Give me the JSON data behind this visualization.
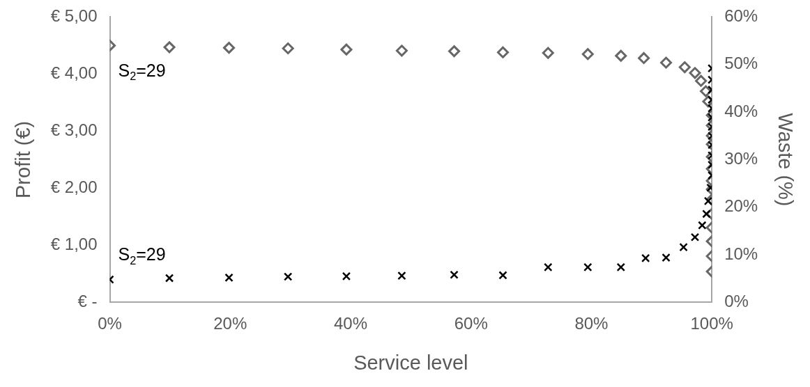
{
  "chart_data": {
    "type": "scatter",
    "xlabel": "Service level",
    "ylabel": "Profit (€)",
    "y2label": "Waste (%)",
    "xlim": [
      0,
      100
    ],
    "xticks": [
      {
        "value": 0,
        "label": "0%"
      },
      {
        "value": 20,
        "label": "20%"
      },
      {
        "value": 40,
        "label": "40%"
      },
      {
        "value": 60,
        "label": "60%"
      },
      {
        "value": 80,
        "label": "80%"
      },
      {
        "value": 100,
        "label": "100%"
      }
    ],
    "ylim": [
      0,
      5
    ],
    "yticks": [
      {
        "value": 0,
        "label": "€ -"
      },
      {
        "value": 1,
        "label": "€ 1,00"
      },
      {
        "value": 2,
        "label": "€ 2,00"
      },
      {
        "value": 3,
        "label": "€ 3,00"
      },
      {
        "value": 4,
        "label": "€ 4,00"
      },
      {
        "value": 5,
        "label": "€ 5,00"
      }
    ],
    "y2lim": [
      0,
      60
    ],
    "y2ticks": [
      {
        "value": 0,
        "label": "0%"
      },
      {
        "value": 10,
        "label": "10%"
      },
      {
        "value": 20,
        "label": "20%"
      },
      {
        "value": 30,
        "label": "30%"
      },
      {
        "value": 40,
        "label": "40%"
      },
      {
        "value": 50,
        "label": "50%"
      },
      {
        "value": 60,
        "label": "60%"
      }
    ],
    "grid": false,
    "legend": false,
    "series": [
      {
        "color": "#666666",
        "marker": "diamond",
        "x": [
          0,
          9.9,
          19.8,
          29.6,
          39.3,
          48.5,
          57.2,
          65.3,
          72.8,
          79.4,
          84.9,
          88.7,
          92.4,
          95.5,
          97.2,
          98.2,
          99,
          99.4,
          100,
          100,
          100,
          100,
          100,
          100,
          100,
          100,
          100,
          100,
          100,
          100,
          100,
          100
        ],
        "values": [
          4.5,
          4.47,
          4.46,
          4.45,
          4.43,
          4.41,
          4.4,
          4.38,
          4.37,
          4.35,
          4.32,
          4.28,
          4.2,
          4.12,
          4.02,
          3.88,
          3.7,
          3.52,
          3.28,
          3.1,
          2.92,
          2.77,
          2.55,
          2.34,
          2.13,
          1.98,
          1.8,
          1.55,
          1.31,
          1.07,
          0.81,
          0.54
        ]
      },
      {
        "color": "#000000",
        "marker": "cross",
        "axis": "y2",
        "x": [
          0,
          9.9,
          19.8,
          29.6,
          39.3,
          48.5,
          57.2,
          65.3,
          72.8,
          79.4,
          84.9,
          89,
          92.4,
          95.3,
          97.2,
          98.4,
          99.1,
          99.4,
          99.8,
          100,
          100,
          100,
          100,
          100,
          100,
          100,
          100,
          100,
          100,
          100,
          100
        ],
        "values": [
          4.8,
          5.1,
          5.2,
          5.4,
          5.5,
          5.6,
          5.8,
          5.7,
          7.4,
          7.4,
          7.4,
          9.3,
          9.4,
          11.6,
          13.7,
          16.2,
          18.6,
          21.3,
          24.1,
          26.7,
          28.9,
          30.9,
          33.1,
          35,
          36.9,
          38.9,
          40.8,
          42.6,
          44.7,
          46.8,
          49.2
        ]
      }
    ],
    "annotations": [
      "S$_{2}$=29",
      "S$_{2}$=29"
    ]
  }
}
